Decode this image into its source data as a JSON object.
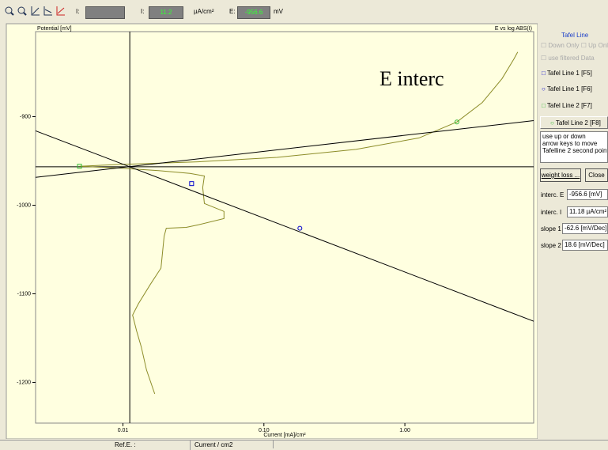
{
  "toolbar": {
    "label_i1": "I:",
    "label_i2": "I:",
    "value_i": "11.2",
    "unit_i": "µA/cm²",
    "label_e": "E:",
    "value_e": "-956.6",
    "unit_e": "mV"
  },
  "chart_data": {
    "type": "line",
    "y_label": "Potential [mV]",
    "title": "E vs log ABS(I)",
    "x_label": "Current [mA]/cm²",
    "annotation": "E interc",
    "x_log": true,
    "xlim": [
      0.0024,
      8.2
    ],
    "ylim": [
      -1246,
      -804
    ],
    "xticks": [
      0.01,
      {
        "value": 0.1,
        "label": "0.10"
      },
      {
        "value": 1,
        "label": "1.00"
      }
    ],
    "yticks": [
      -900,
      -1000,
      -1100,
      -1200
    ],
    "series": [
      {
        "color": "#8c8c28",
        "x": [
          0.0168,
          0.0147,
          0.0135,
          0.0125,
          0.0117,
          0.0129,
          0.0157,
          0.0186,
          0.0196,
          0.0203,
          0.0281,
          0.0345,
          0.0521,
          0.0521,
          0.0378,
          0.0368,
          0.0378,
          0.0299,
          0.0179,
          0.0094,
          0.00492,
          0.0094,
          0.034,
          0.124,
          0.45,
          1.26,
          2.34,
          3.54,
          4.89,
          5.93,
          6.32
        ],
        "values": [
          -1213,
          -1186,
          -1160,
          -1142,
          -1124,
          -1111,
          -1089,
          -1071,
          -1035,
          -1026,
          -1025,
          -1022,
          -1015,
          -1007,
          -998,
          -980,
          -967,
          -964,
          -961,
          -958,
          -956,
          -954,
          -951,
          -946,
          -937,
          -924,
          -906,
          -884,
          -857,
          -835,
          -827
        ]
      }
    ],
    "lines": [
      {
        "color": "#000000",
        "x": [
          0.0024,
          8.2
        ],
        "y": [
          -916,
          -1131
        ]
      },
      {
        "color": "#000000",
        "x": [
          0.0024,
          8.2
        ],
        "y": [
          -968.5,
          -904.5
        ]
      }
    ],
    "crosshair": {
      "x": 0.01118,
      "y": -956.6
    },
    "markers": [
      {
        "x": 0.0307,
        "y": -975.6,
        "shape": "square",
        "color": "#0000cc"
      },
      {
        "x": 0.18,
        "y": -1026,
        "shape": "circle",
        "color": "#0000cc"
      },
      {
        "x": 0.00492,
        "y": -956,
        "shape": "square",
        "color": "#33bb33"
      },
      {
        "x": 2.34,
        "y": -906,
        "shape": "circle",
        "color": "#33bb33"
      }
    ]
  },
  "panel": {
    "title": "Tafel Line",
    "down_only": "Down Only",
    "up_only": "Up Only",
    "filtered": "use filtered Data",
    "items": [
      "Tafel Line 1 [F5]",
      "Tafel Line 1 [F6]",
      "Tafel Line 2 [F7]",
      "Tafel Line 2 [F8]"
    ],
    "hint": [
      "use up or down",
      "arrow keys to move",
      "Tafelline 2 second point"
    ],
    "buttons": [
      "weight loss ...",
      "Close"
    ],
    "fields": [
      {
        "label": "interc. E",
        "value": "-956.6 [mV]"
      },
      {
        "label": "interc. I",
        "value": "11.18 µA/cm²"
      },
      {
        "label": "slope 1",
        "value": "-62.6 [mV/Dec]"
      },
      {
        "label": "slope 2",
        "value": "18.6 [mV/Dec]"
      }
    ]
  },
  "status": [
    "Ref.E. :",
    "Current / cm2"
  ]
}
